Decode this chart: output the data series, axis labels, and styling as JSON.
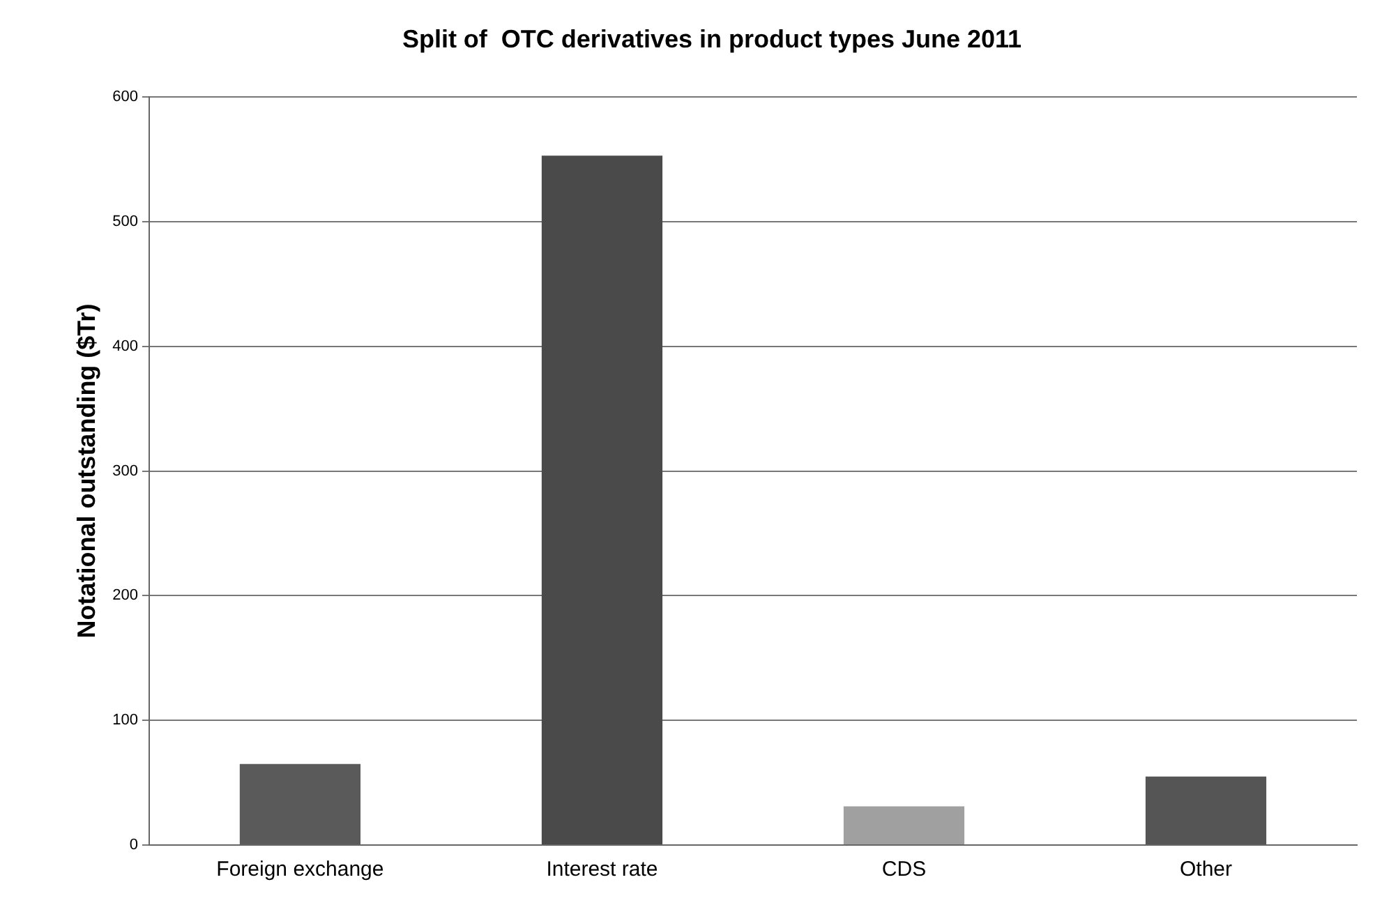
{
  "chart_data": {
    "type": "bar",
    "title": "Split of  OTC derivatives in product types June 2011",
    "ylabel": "Notational outstanding ($Tr)",
    "categories": [
      "Foreign exchange",
      "Interest rate",
      "CDS",
      "Other"
    ],
    "values": [
      65,
      553,
      31,
      55
    ],
    "colors": [
      "#5a5a5a",
      "#4a4a4a",
      "#a0a0a0",
      "#555555"
    ],
    "ylim": [
      0,
      600
    ],
    "yticks": [
      0,
      100,
      200,
      300,
      400,
      500,
      600
    ],
    "grid": "y",
    "legend": false
  }
}
